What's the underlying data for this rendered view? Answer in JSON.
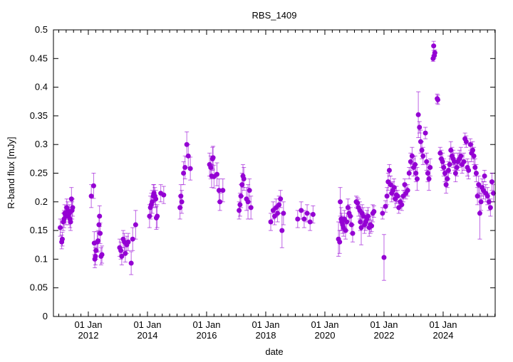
{
  "chart_data": {
    "type": "scatter",
    "title": "RBS_1409",
    "xlabel": "date",
    "ylabel": "R-band flux [mJy]",
    "xlim": [
      2010.82,
      2025.76
    ],
    "ylim": [
      0,
      0.5
    ],
    "grid": false,
    "color": "#9400d3",
    "yticks": [
      0,
      0.05,
      0.1,
      0.15,
      0.2,
      0.25,
      0.3,
      0.35,
      0.4,
      0.45,
      0.5
    ],
    "ytick_labels": [
      "0",
      "0.05",
      "0.1",
      "0.15",
      "0.2",
      "0.25",
      "0.3",
      "0.35",
      "0.4",
      "0.45",
      "0.5"
    ],
    "xticks": [
      2012,
      2014,
      2016,
      2018,
      2020,
      2022,
      2024
    ],
    "xtick_labels": [
      {
        "line1": "01 Jan",
        "line2": "2012"
      },
      {
        "line1": "01 Jan",
        "line2": "2014"
      },
      {
        "line1": "01 Jan",
        "line2": "2016"
      },
      {
        "line1": "01 Jan",
        "line2": "2018"
      },
      {
        "line1": "01 Jan",
        "line2": "2020"
      },
      {
        "line1": "01 Jan",
        "line2": "2022"
      },
      {
        "line1": "01 Jan",
        "line2": "2024"
      }
    ],
    "points_year_flux_err": [
      [
        2011.05,
        0.155,
        0.015
      ],
      [
        2011.1,
        0.13,
        0.012
      ],
      [
        2011.12,
        0.135,
        0.012
      ],
      [
        2011.15,
        0.165,
        0.015
      ],
      [
        2011.18,
        0.17,
        0.015
      ],
      [
        2011.2,
        0.18,
        0.015
      ],
      [
        2011.24,
        0.175,
        0.015
      ],
      [
        2011.27,
        0.19,
        0.015
      ],
      [
        2011.3,
        0.185,
        0.015
      ],
      [
        2011.33,
        0.175,
        0.015
      ],
      [
        2011.36,
        0.18,
        0.015
      ],
      [
        2011.38,
        0.17,
        0.015
      ],
      [
        2011.4,
        0.165,
        0.015
      ],
      [
        2011.43,
        0.205,
        0.02
      ],
      [
        2011.45,
        0.185,
        0.015
      ],
      [
        2011.47,
        0.19,
        0.015
      ],
      [
        2012.1,
        0.21,
        0.02
      ],
      [
        2012.18,
        0.228,
        0.022
      ],
      [
        2012.2,
        0.128,
        0.02
      ],
      [
        2012.22,
        0.1,
        0.015
      ],
      [
        2012.24,
        0.105,
        0.015
      ],
      [
        2012.26,
        0.115,
        0.015
      ],
      [
        2012.3,
        0.13,
        0.018
      ],
      [
        2012.33,
        0.132,
        0.018
      ],
      [
        2012.36,
        0.16,
        0.015
      ],
      [
        2012.38,
        0.175,
        0.018
      ],
      [
        2012.4,
        0.145,
        0.018
      ],
      [
        2012.43,
        0.105,
        0.015
      ],
      [
        2012.46,
        0.108,
        0.015
      ],
      [
        2013.06,
        0.12,
        0.015
      ],
      [
        2013.1,
        0.115,
        0.015
      ],
      [
        2013.13,
        0.105,
        0.015
      ],
      [
        2013.18,
        0.135,
        0.015
      ],
      [
        2013.22,
        0.13,
        0.015
      ],
      [
        2013.25,
        0.11,
        0.015
      ],
      [
        2013.3,
        0.125,
        0.015
      ],
      [
        2013.35,
        0.13,
        0.015
      ],
      [
        2013.45,
        0.093,
        0.02
      ],
      [
        2013.5,
        0.135,
        0.02
      ],
      [
        2013.6,
        0.16,
        0.025
      ],
      [
        2014.07,
        0.175,
        0.02
      ],
      [
        2014.1,
        0.19,
        0.02
      ],
      [
        2014.13,
        0.195,
        0.02
      ],
      [
        2014.16,
        0.2,
        0.02
      ],
      [
        2014.2,
        0.21,
        0.02
      ],
      [
        2014.22,
        0.215,
        0.015
      ],
      [
        2014.25,
        0.21,
        0.015
      ],
      [
        2014.28,
        0.205,
        0.015
      ],
      [
        2014.33,
        0.175,
        0.02
      ],
      [
        2014.45,
        0.215,
        0.015
      ],
      [
        2014.55,
        0.212,
        0.015
      ],
      [
        2014.3,
        0.172,
        0.02
      ],
      [
        2015.1,
        0.19,
        0.02
      ],
      [
        2015.13,
        0.21,
        0.02
      ],
      [
        2015.16,
        0.2,
        0.02
      ],
      [
        2015.22,
        0.25,
        0.02
      ],
      [
        2015.27,
        0.26,
        0.02
      ],
      [
        2015.33,
        0.3,
        0.022
      ],
      [
        2015.38,
        0.28,
        0.02
      ],
      [
        2015.45,
        0.258,
        0.02
      ],
      [
        2016.1,
        0.265,
        0.02
      ],
      [
        2016.14,
        0.26,
        0.02
      ],
      [
        2016.17,
        0.245,
        0.02
      ],
      [
        2016.2,
        0.275,
        0.02
      ],
      [
        2016.22,
        0.277,
        0.02
      ],
      [
        2016.25,
        0.244,
        0.02
      ],
      [
        2016.35,
        0.248,
        0.02
      ],
      [
        2016.42,
        0.22,
        0.02
      ],
      [
        2016.45,
        0.2,
        0.015
      ],
      [
        2016.55,
        0.22,
        0.02
      ],
      [
        2017.1,
        0.185,
        0.015
      ],
      [
        2017.13,
        0.195,
        0.02
      ],
      [
        2017.16,
        0.21,
        0.02
      ],
      [
        2017.2,
        0.23,
        0.02
      ],
      [
        2017.23,
        0.245,
        0.02
      ],
      [
        2017.26,
        0.24,
        0.02
      ],
      [
        2017.35,
        0.205,
        0.02
      ],
      [
        2017.4,
        0.2,
        0.03
      ],
      [
        2017.45,
        0.22,
        0.02
      ],
      [
        2017.5,
        0.19,
        0.02
      ],
      [
        2018.17,
        0.165,
        0.015
      ],
      [
        2018.25,
        0.185,
        0.015
      ],
      [
        2018.3,
        0.175,
        0.015
      ],
      [
        2018.35,
        0.19,
        0.015
      ],
      [
        2018.4,
        0.18,
        0.015
      ],
      [
        2018.45,
        0.195,
        0.015
      ],
      [
        2018.5,
        0.205,
        0.015
      ],
      [
        2018.55,
        0.15,
        0.03
      ],
      [
        2018.6,
        0.18,
        0.02
      ],
      [
        2019.08,
        0.17,
        0.015
      ],
      [
        2019.2,
        0.185,
        0.015
      ],
      [
        2019.3,
        0.17,
        0.015
      ],
      [
        2019.4,
        0.18,
        0.015
      ],
      [
        2019.5,
        0.165,
        0.015
      ],
      [
        2019.6,
        0.178,
        0.015
      ],
      [
        2020.46,
        0.135,
        0.03
      ],
      [
        2020.5,
        0.13,
        0.02
      ],
      [
        2020.52,
        0.2,
        0.025
      ],
      [
        2020.55,
        0.17,
        0.02
      ],
      [
        2020.57,
        0.165,
        0.015
      ],
      [
        2020.6,
        0.16,
        0.015
      ],
      [
        2020.63,
        0.155,
        0.015
      ],
      [
        2020.66,
        0.17,
        0.015
      ],
      [
        2020.7,
        0.15,
        0.015
      ],
      [
        2020.74,
        0.165,
        0.015
      ],
      [
        2020.78,
        0.19,
        0.015
      ],
      [
        2020.82,
        0.18,
        0.015
      ],
      [
        2020.86,
        0.175,
        0.015
      ],
      [
        2020.9,
        0.16,
        0.015
      ],
      [
        2020.94,
        0.145,
        0.015
      ],
      [
        2021.06,
        0.2,
        0.01
      ],
      [
        2021.1,
        0.198,
        0.01
      ],
      [
        2021.14,
        0.19,
        0.015
      ],
      [
        2021.18,
        0.185,
        0.015
      ],
      [
        2021.2,
        0.165,
        0.015
      ],
      [
        2021.23,
        0.155,
        0.03
      ],
      [
        2021.26,
        0.18,
        0.015
      ],
      [
        2021.3,
        0.175,
        0.015
      ],
      [
        2021.34,
        0.16,
        0.015
      ],
      [
        2021.38,
        0.165,
        0.015
      ],
      [
        2021.42,
        0.17,
        0.015
      ],
      [
        2021.46,
        0.175,
        0.015
      ],
      [
        2021.5,
        0.155,
        0.015
      ],
      [
        2021.54,
        0.16,
        0.015
      ],
      [
        2021.58,
        0.158,
        0.01
      ],
      [
        2021.62,
        0.18,
        0.015
      ],
      [
        2021.66,
        0.183,
        0.01
      ],
      [
        2021.95,
        0.18,
        0.01
      ],
      [
        2022.0,
        0.103,
        0.04
      ],
      [
        2022.05,
        0.192,
        0.01
      ],
      [
        2022.1,
        0.21,
        0.015
      ],
      [
        2022.14,
        0.235,
        0.015
      ],
      [
        2022.18,
        0.255,
        0.01
      ],
      [
        2022.22,
        0.23,
        0.015
      ],
      [
        2022.26,
        0.215,
        0.015
      ],
      [
        2022.3,
        0.22,
        0.015
      ],
      [
        2022.34,
        0.225,
        0.015
      ],
      [
        2022.38,
        0.205,
        0.015
      ],
      [
        2022.42,
        0.212,
        0.015
      ],
      [
        2022.46,
        0.21,
        0.01
      ],
      [
        2022.5,
        0.19,
        0.01
      ],
      [
        2022.55,
        0.2,
        0.01
      ],
      [
        2022.6,
        0.195,
        0.01
      ],
      [
        2022.65,
        0.21,
        0.01
      ],
      [
        2022.7,
        0.23,
        0.01
      ],
      [
        2022.74,
        0.215,
        0.01
      ],
      [
        2022.8,
        0.22,
        0.01
      ],
      [
        2022.85,
        0.25,
        0.01
      ],
      [
        2022.9,
        0.27,
        0.015
      ],
      [
        2022.95,
        0.28,
        0.015
      ],
      [
        2023.0,
        0.26,
        0.015
      ],
      [
        2023.05,
        0.265,
        0.015
      ],
      [
        2023.08,
        0.25,
        0.015
      ],
      [
        2023.12,
        0.24,
        0.02
      ],
      [
        2023.16,
        0.352,
        0.04
      ],
      [
        2023.2,
        0.33,
        0.01
      ],
      [
        2023.24,
        0.305,
        0.02
      ],
      [
        2023.28,
        0.29,
        0.015
      ],
      [
        2023.32,
        0.28,
        0.015
      ],
      [
        2023.4,
        0.32,
        0.01
      ],
      [
        2023.44,
        0.27,
        0.015
      ],
      [
        2023.48,
        0.25,
        0.015
      ],
      [
        2023.52,
        0.24,
        0.02
      ],
      [
        2023.56,
        0.26,
        0.015
      ],
      [
        2023.66,
        0.45,
        0.005
      ],
      [
        2023.68,
        0.472,
        0.008
      ],
      [
        2023.7,
        0.455,
        0.005
      ],
      [
        2023.72,
        0.46,
        0.005
      ],
      [
        2023.8,
        0.38,
        0.008
      ],
      [
        2023.82,
        0.378,
        0.008
      ],
      [
        2023.9,
        0.285,
        0.01
      ],
      [
        2023.94,
        0.275,
        0.015
      ],
      [
        2023.98,
        0.27,
        0.015
      ],
      [
        2024.02,
        0.26,
        0.015
      ],
      [
        2024.06,
        0.25,
        0.015
      ],
      [
        2024.1,
        0.23,
        0.015
      ],
      [
        2024.14,
        0.24,
        0.015
      ],
      [
        2024.18,
        0.255,
        0.015
      ],
      [
        2024.22,
        0.265,
        0.015
      ],
      [
        2024.26,
        0.29,
        0.015
      ],
      [
        2024.3,
        0.28,
        0.015
      ],
      [
        2024.34,
        0.275,
        0.015
      ],
      [
        2024.38,
        0.27,
        0.015
      ],
      [
        2024.42,
        0.25,
        0.015
      ],
      [
        2024.46,
        0.26,
        0.015
      ],
      [
        2024.5,
        0.27,
        0.015
      ],
      [
        2024.55,
        0.275,
        0.015
      ],
      [
        2024.6,
        0.28,
        0.015
      ],
      [
        2024.64,
        0.265,
        0.015
      ],
      [
        2024.7,
        0.27,
        0.015
      ],
      [
        2024.74,
        0.31,
        0.01
      ],
      [
        2024.78,
        0.305,
        0.01
      ],
      [
        2024.82,
        0.26,
        0.015
      ],
      [
        2024.86,
        0.255,
        0.015
      ],
      [
        2024.92,
        0.3,
        0.01
      ],
      [
        2024.96,
        0.285,
        0.015
      ],
      [
        2025.0,
        0.29,
        0.015
      ],
      [
        2025.04,
        0.28,
        0.015
      ],
      [
        2025.08,
        0.26,
        0.015
      ],
      [
        2025.12,
        0.25,
        0.015
      ],
      [
        2025.16,
        0.21,
        0.015
      ],
      [
        2025.2,
        0.23,
        0.015
      ],
      [
        2025.24,
        0.18,
        0.045
      ],
      [
        2025.28,
        0.2,
        0.015
      ],
      [
        2025.32,
        0.225,
        0.015
      ],
      [
        2025.36,
        0.22,
        0.015
      ],
      [
        2025.4,
        0.245,
        0.01
      ],
      [
        2025.44,
        0.215,
        0.015
      ],
      [
        2025.5,
        0.21,
        0.015
      ],
      [
        2025.55,
        0.2,
        0.015
      ],
      [
        2025.6,
        0.19,
        0.015
      ],
      [
        2025.65,
        0.235,
        0.015
      ],
      [
        2025.7,
        0.215,
        0.015
      ]
    ]
  }
}
